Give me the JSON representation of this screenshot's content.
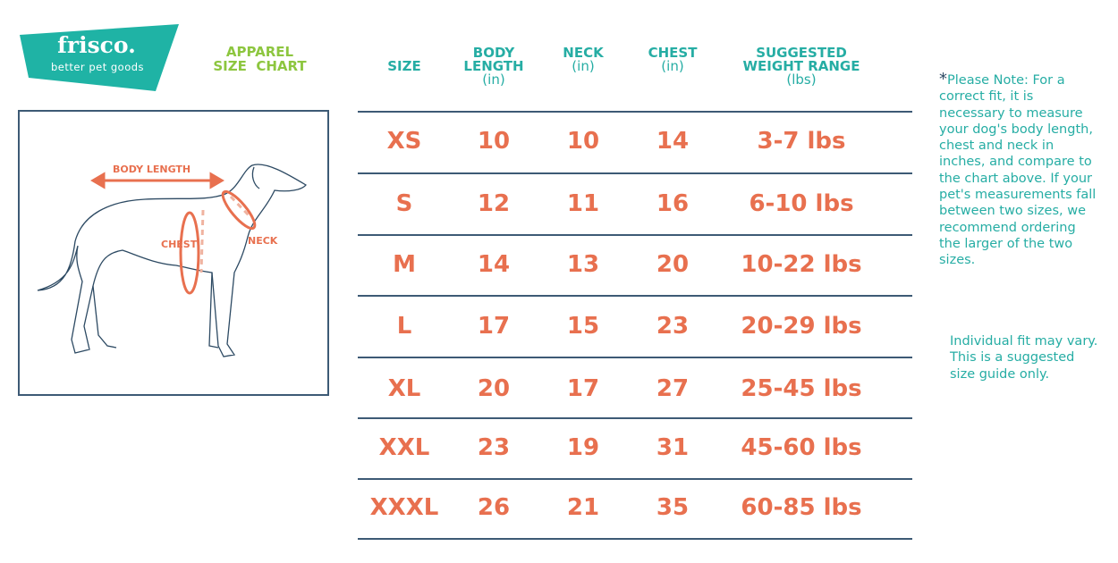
{
  "brand": {
    "name": "frisco.",
    "tagline": "better pet goods",
    "color": "#1fb3a5"
  },
  "title": {
    "line1": "APPAREL",
    "line2": "SIZE  CHART",
    "color": "#8dc63f"
  },
  "figure": {
    "labels": {
      "body_length": "BODY LENGTH",
      "chest": "CHEST",
      "neck": "NECK"
    },
    "accent": "#e8704f"
  },
  "table": {
    "headers": [
      {
        "title": "SIZE",
        "unit": ""
      },
      {
        "title": "BODY LENGTH",
        "unit": "(in)"
      },
      {
        "title": "NECK",
        "unit": "(in)"
      },
      {
        "title": "CHEST",
        "unit": "(in)"
      },
      {
        "title": "SUGGESTED WEIGHT RANGE",
        "unit": "(lbs)"
      }
    ],
    "rows": [
      [
        "XS",
        "10",
        "10",
        "14",
        "3-7 lbs"
      ],
      [
        "S",
        "12",
        "11",
        "16",
        "6-10 lbs"
      ],
      [
        "M",
        "14",
        "13",
        "20",
        "10-22 lbs"
      ],
      [
        "L",
        "17",
        "15",
        "23",
        "20-29 lbs"
      ],
      [
        "XL",
        "20",
        "17",
        "27",
        "25-45 lbs"
      ],
      [
        "XXL",
        "23",
        "19",
        "31",
        "45-60 lbs"
      ],
      [
        "XXXL",
        "26",
        "21",
        "35",
        "60-85 lbs"
      ]
    ]
  },
  "note": {
    "star": "*",
    "text": "Please Note: For a correct fit, it is necessary to measure your dog's body length, chest and neck in inches, and compare to the chart above. If your pet's measurements fall between two sizes, we recommend ordering the larger of the two sizes.",
    "text2": "Individual fit may vary. This is a suggested size guide only."
  }
}
